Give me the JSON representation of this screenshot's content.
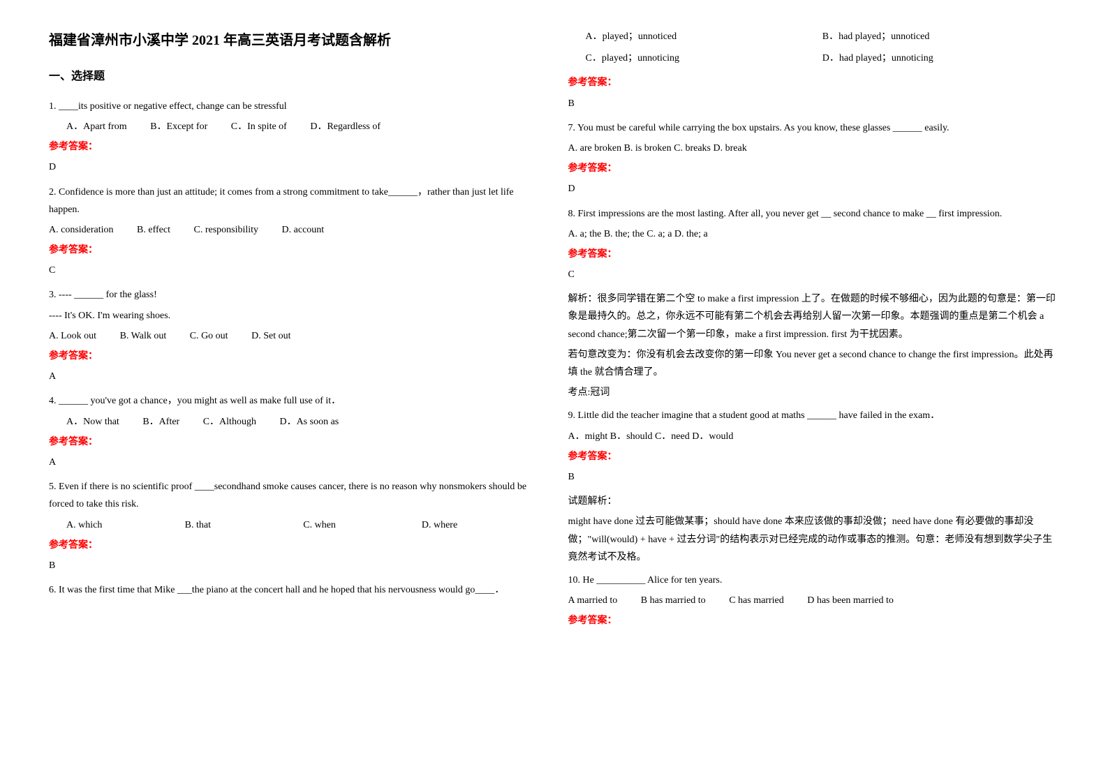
{
  "title": "福建省漳州市小溪中学 2021 年高三英语月考试题含解析",
  "section1_heading": "一、选择题",
  "answer_label": "参考答案：",
  "colors": {
    "text": "#000000",
    "answer_label": "#ff0000",
    "background": "#ffffff"
  },
  "typography": {
    "title_fontsize": 20,
    "section_fontsize": 16,
    "body_fontsize": 14,
    "font_family": "SimSun"
  },
  "q1": {
    "text": "1. ____its positive or negative effect, change can be stressful",
    "optA": "A．Apart from",
    "optB": "B．Except for",
    "optC": "C．In spite of",
    "optD": "D．Regardless of",
    "answer": "D"
  },
  "q2": {
    "text": "2. Confidence is more than just an attitude; it comes from a strong commitment to take______，rather than just let life happen.",
    "optA": "A. consideration",
    "optB": "B. effect",
    "optC": "C. responsibility",
    "optD": "D. account",
    "answer": "C"
  },
  "q3": {
    "line1": "3. ---- ______ for the glass!",
    "line2": "---- It's OK. I'm wearing shoes.",
    "optA": "A. Look out",
    "optB": "B. Walk out",
    "optC": "C. Go out",
    "optD": "D. Set out",
    "answer": "A"
  },
  "q4": {
    "text": "4. ______ you've got a chance，you might as well as make full use of it．",
    "optA": "A．Now that",
    "optB": "B．After",
    "optC": "C．Although",
    "optD": "D．As soon as",
    "answer": "A"
  },
  "q5": {
    "text": "5. Even if there is no scientific proof ____secondhand smoke causes cancer, there is no reason why nonsmokers should be forced to take this risk.",
    "optA": "A. which",
    "optB": "B. that",
    "optC": "C. when",
    "optD": "D. where",
    "answer": "B"
  },
  "q6": {
    "text": "6. It was the first time that Mike ___the piano at the concert hall and he hoped that his nervousness would go____．",
    "optA": "A．played；unnoticed",
    "optB": "B．had played；unnoticed",
    "optC": "C．played；unnoticing",
    "optD": "D．had played；unnoticing",
    "answer": "B"
  },
  "q7": {
    "text": "7. You must be careful while carrying the box upstairs. As you know, these glasses ______ easily.",
    "options": "A. are broken    B. is broken    C. breaks    D. break",
    "answer": "D"
  },
  "q8": {
    "text": "8. First impressions are the most lasting. After all, you never get __ second chance to make __ first impression.",
    "options": "A. a; the    B. the; the    C. a; a    D. the; a",
    "answer": "C",
    "exp1": "解析：很多同学错在第二个空 to make a first impression 上了。在做题的时候不够细心，因为此题的句意是：第一印象是最持久的。总之，你永远不可能有第二个机会去再给别人留一次第一印象。本题强调的重点是第二个机会 a second chance;第二次留一个第一印象，make a first impression. first 为干扰因素。",
    "exp2": "若句意改变为：你没有机会去改变你的第一印象 You never get a second chance to change the first impression。此处再填 the 就合情合理了。",
    "exp3": "考点:冠词"
  },
  "q9": {
    "text": "9. Little did the teacher imagine that a student good at maths ______ have failed in the exam．",
    "options": "A．might  B．should   C．need   D．would",
    "answer": "B",
    "exp_label": "试题解析：",
    "exp1": "might have done 过去可能做某事；should have done 本来应该做的事却没做；need have done 有必要做的事却没做；\"will(would) + have + 过去分词\"的结构表示对已经完成的动作或事态的推测。句意：老师没有想到数学尖子生竟然考试不及格。"
  },
  "q10": {
    "text": "10. He __________ Alice for ten years.",
    "optA": "A married to",
    "optB": "B has married to",
    "optC": "C has married",
    "optD": "D has been married to"
  }
}
